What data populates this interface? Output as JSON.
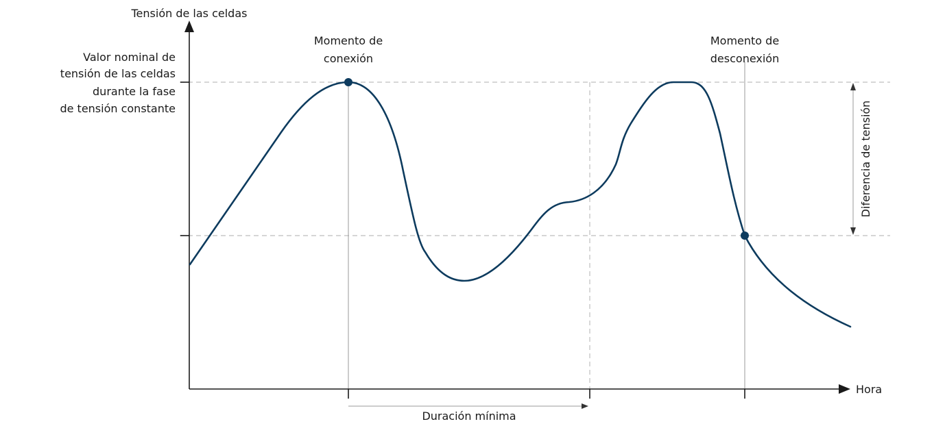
{
  "axes": {
    "y_title": "Tensión de las celdas",
    "x_title": "Hora"
  },
  "labels": {
    "nominal_voltage": [
      "Valor nominal de",
      "tensión de las celdas",
      "durante la fase",
      "de tensión constante"
    ],
    "connection_moment": [
      "Momento de",
      "conexión"
    ],
    "disconnection_moment": [
      "Momento de",
      "desconexión"
    ],
    "voltage_difference": "Diferencia de tensión",
    "minimum_duration": "Duración mínima"
  },
  "colors": {
    "curve": "#0d3b5e",
    "axis": "#1a1a1a",
    "guide_dashed": "#bdbdbd",
    "guide_thin": "#9a9a9a"
  }
}
